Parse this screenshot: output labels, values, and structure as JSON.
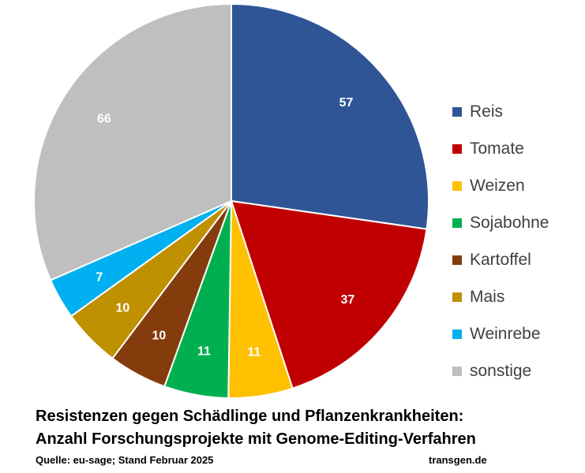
{
  "chart_data": {
    "type": "pie",
    "categories": [
      "Reis",
      "Tomate",
      "Weizen",
      "Sojabohne",
      "Kartoffel",
      "Mais",
      "Weinrebe",
      "sonstige"
    ],
    "values": [
      57,
      37,
      11,
      11,
      10,
      10,
      7,
      66
    ],
    "colors": [
      "#2F5597",
      "#C00000",
      "#FFC000",
      "#00B050",
      "#843C0C",
      "#BF9000",
      "#00B0F0",
      "#BFBFBF"
    ],
    "data_labels": [
      "57",
      "37",
      "11",
      "11",
      "10",
      "10",
      "7",
      "66"
    ],
    "legend_position": "right",
    "title_line1": "Resistenzen gegen Schädlinge und Pflanzenkrankheiten:",
    "title_line2": "Anzahl Forschungsprojekte mit Genome-Editing-Verfahren"
  },
  "source": "Quelle: eu-sage; Stand Februar 2025",
  "site": "transgen.de"
}
